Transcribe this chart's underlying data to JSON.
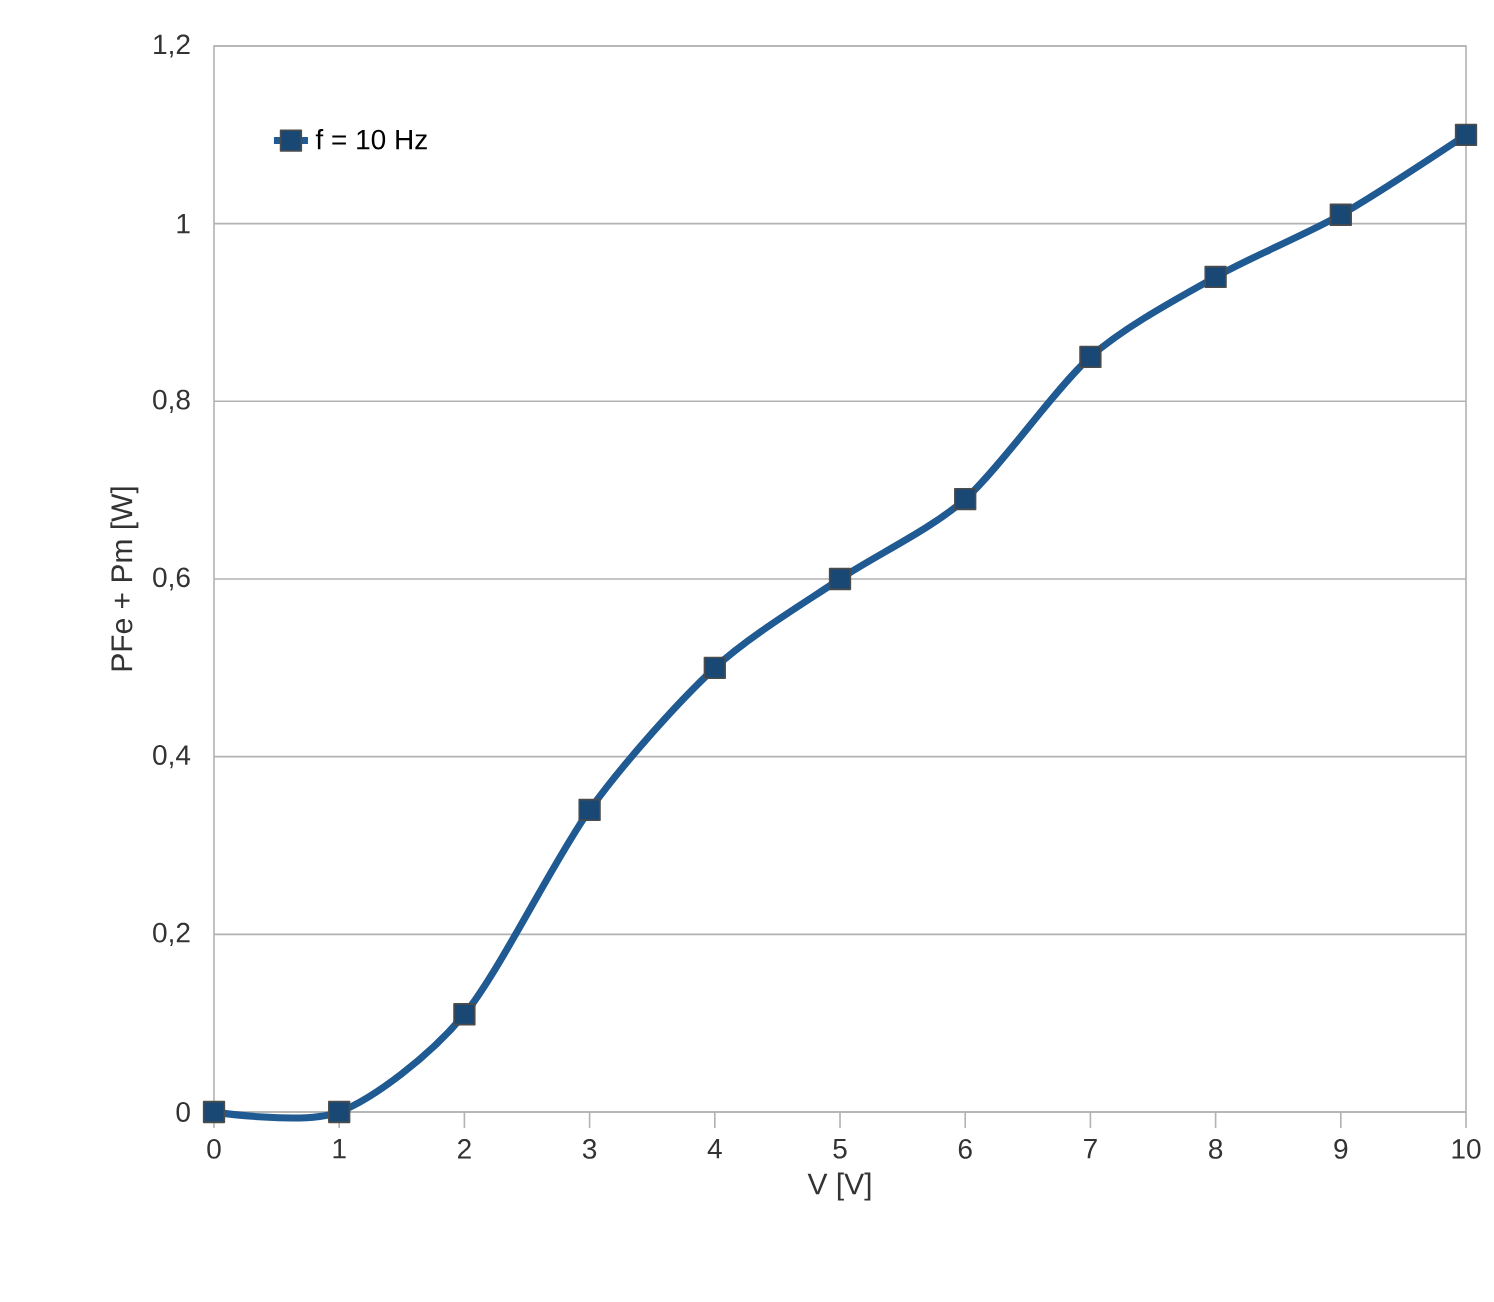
{
  "chart_data": {
    "type": "line",
    "xlabel": "V [V]",
    "ylabel": "PFe + Pm [W]",
    "x": [
      0,
      1,
      2,
      3,
      4,
      5,
      6,
      7,
      8,
      9,
      10
    ],
    "series": [
      {
        "name": "f = 10 Hz",
        "color": "#1f5a92",
        "values": [
          0,
          0,
          0.11,
          0.34,
          0.5,
          0.6,
          0.69,
          0.85,
          0.94,
          1.01,
          1.1
        ]
      }
    ],
    "xlim": [
      0,
      10
    ],
    "ylim": [
      0,
      1.2
    ],
    "xticks": [
      0,
      1,
      2,
      3,
      4,
      5,
      6,
      7,
      8,
      9,
      10
    ],
    "yticks": [
      0,
      {
        "value": 0.2,
        "label": "0,2"
      },
      {
        "value": 0.4,
        "label": "0,4"
      },
      {
        "value": 0.6,
        "label": "0,6"
      },
      {
        "value": 0.8,
        "label": "0,8"
      },
      1,
      {
        "value": 1.2,
        "label": "1,2"
      }
    ],
    "grid": "y",
    "legend": "top left",
    "marker": "square",
    "line_style": "solid"
  }
}
